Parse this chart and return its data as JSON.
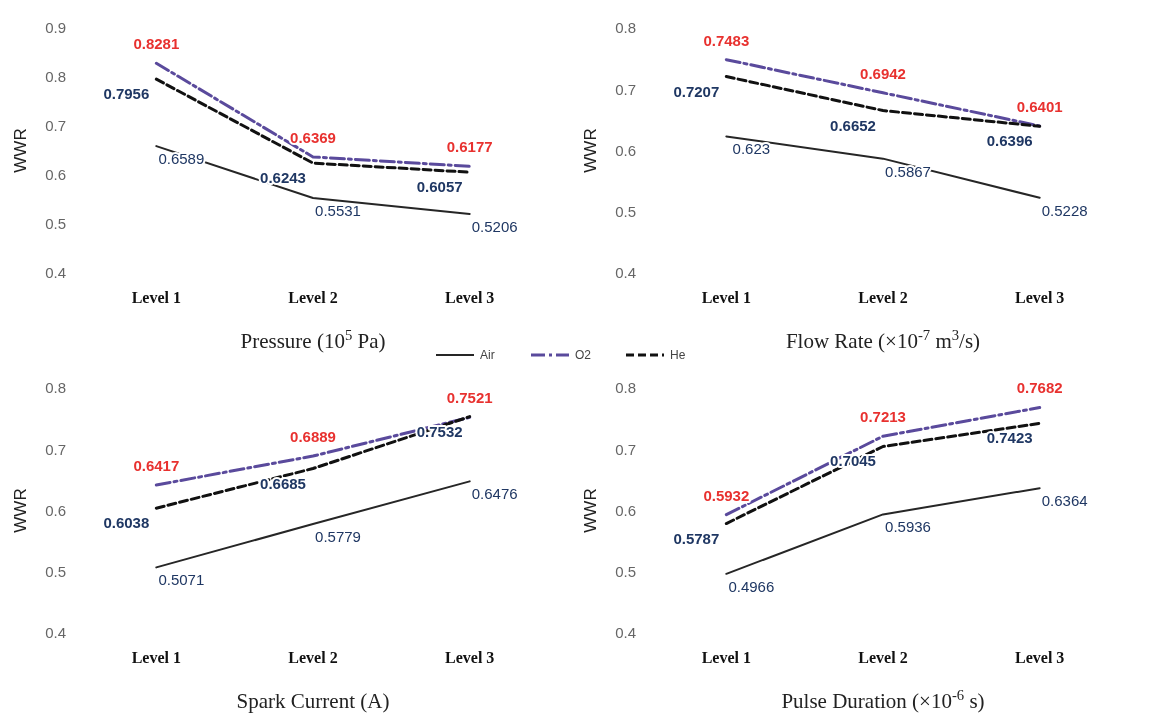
{
  "chart_data": [
    {
      "type": "line",
      "categories": [
        "Level 1",
        "Level 2",
        "Level 3"
      ],
      "xlabel": "Pressure (10$^{5}$ Pa)",
      "ylabel": "WWR",
      "ylim": [
        0.4,
        0.9
      ],
      "yticks": [
        0.4,
        0.5,
        0.6,
        0.7,
        0.8,
        0.9
      ],
      "data_labels": true,
      "legend": "bottom",
      "marker": "none",
      "series": [
        {
          "name": "Air",
          "color": "#262626",
          "line_style": "solid",
          "values": [
            0.6589,
            0.5531,
            0.5206
          ]
        },
        {
          "name": "O2",
          "color": "#5a4a9c",
          "line_style": "dashed",
          "values": [
            0.8281,
            0.6369,
            0.6177
          ]
        },
        {
          "name": "He",
          "color": "#111111",
          "line_style": "dashed",
          "values": [
            0.7956,
            0.6243,
            0.6057
          ]
        }
      ]
    },
    {
      "type": "line",
      "categories": [
        "Level 1",
        "Level 2",
        "Level 3"
      ],
      "xlabel": "Flow Rate (×10$^{-7}$ m$^{3}$/s)",
      "ylabel": "WWR",
      "ylim": [
        0.4,
        0.8
      ],
      "yticks": [
        0.4,
        0.5,
        0.6,
        0.7,
        0.8
      ],
      "data_labels": true,
      "marker": "none",
      "series": [
        {
          "color": "#262626",
          "line_style": "solid",
          "values": [
            0.623,
            0.5867,
            0.5228
          ]
        },
        {
          "color": "#5a4a9c",
          "line_style": "dashed",
          "values": [
            0.7483,
            0.6942,
            0.6401
          ]
        },
        {
          "color": "#111111",
          "line_style": "dashed",
          "values": [
            0.7207,
            0.6652,
            0.6396
          ]
        }
      ]
    },
    {
      "type": "line",
      "categories": [
        "Level 1",
        "Level 2",
        "Level 3"
      ],
      "xlabel": "Spark Current (A)",
      "ylabel": "WWR",
      "ylim": [
        0.4,
        0.8
      ],
      "yticks": [
        0.4,
        0.5,
        0.6,
        0.7,
        0.8
      ],
      "data_labels": true,
      "marker": "none",
      "series": [
        {
          "color": "#262626",
          "line_style": "solid",
          "values": [
            0.5071,
            0.5779,
            0.6476
          ]
        },
        {
          "color": "#5a4a9c",
          "line_style": "dashed",
          "values": [
            0.6417,
            0.6889,
            0.7521
          ]
        },
        {
          "color": "#111111",
          "line_style": "dashed",
          "values": [
            0.6038,
            0.6685,
            0.7532
          ]
        }
      ]
    },
    {
      "type": "line",
      "categories": [
        "Level 1",
        "Level 2",
        "Level 3"
      ],
      "xlabel": "Pulse Duration (×10$^{-6}$ s)",
      "ylabel": "WWR",
      "ylim": [
        0.4,
        0.8
      ],
      "yticks": [
        0.4,
        0.5,
        0.6,
        0.7,
        0.8
      ],
      "data_labels": true,
      "marker": "none",
      "series": [
        {
          "color": "#262626",
          "line_style": "solid",
          "values": [
            0.4966,
            0.5936,
            0.6364
          ]
        },
        {
          "color": "#5a4a9c",
          "line_style": "dashed",
          "values": [
            0.5932,
            0.7213,
            0.7682
          ]
        },
        {
          "color": "#111111",
          "line_style": "dashed",
          "values": [
            0.5787,
            0.7045,
            0.7423
          ]
        }
      ]
    }
  ]
}
